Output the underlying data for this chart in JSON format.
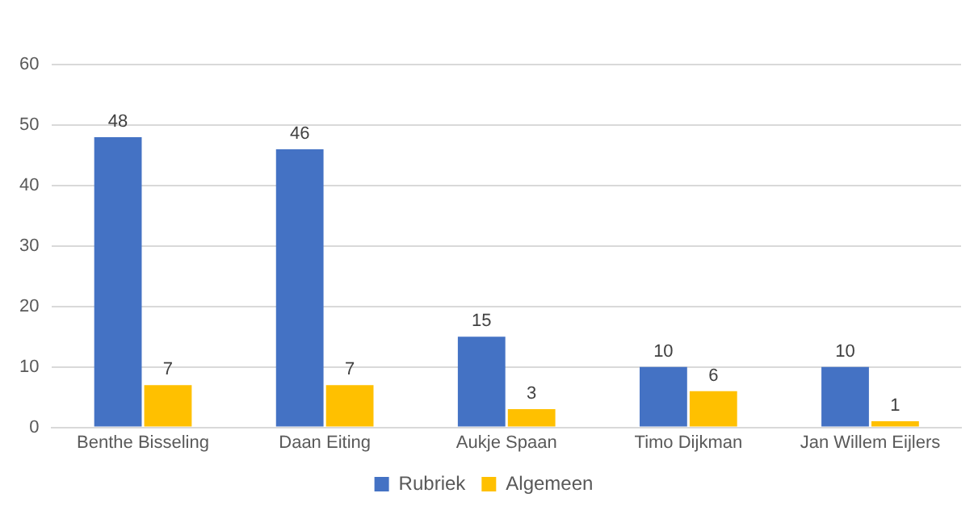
{
  "chart_data": {
    "type": "bar",
    "categories": [
      "Benthe Bisseling",
      "Daan Eiting",
      "Aukje Spaan",
      "Timo Dijkman",
      "Jan Willem Eijlers"
    ],
    "series": [
      {
        "name": "Rubriek",
        "color": "#4472c4",
        "values": [
          48,
          46,
          15,
          10,
          10
        ]
      },
      {
        "name": "Algemeen",
        "color": "#ffc000",
        "values": [
          7,
          7,
          3,
          6,
          1
        ]
      }
    ],
    "ylim": [
      0,
      60
    ],
    "yticks": [
      0,
      10,
      20,
      30,
      40,
      50,
      60
    ],
    "grid": "y",
    "legend": "bottom",
    "data_labels": true
  }
}
